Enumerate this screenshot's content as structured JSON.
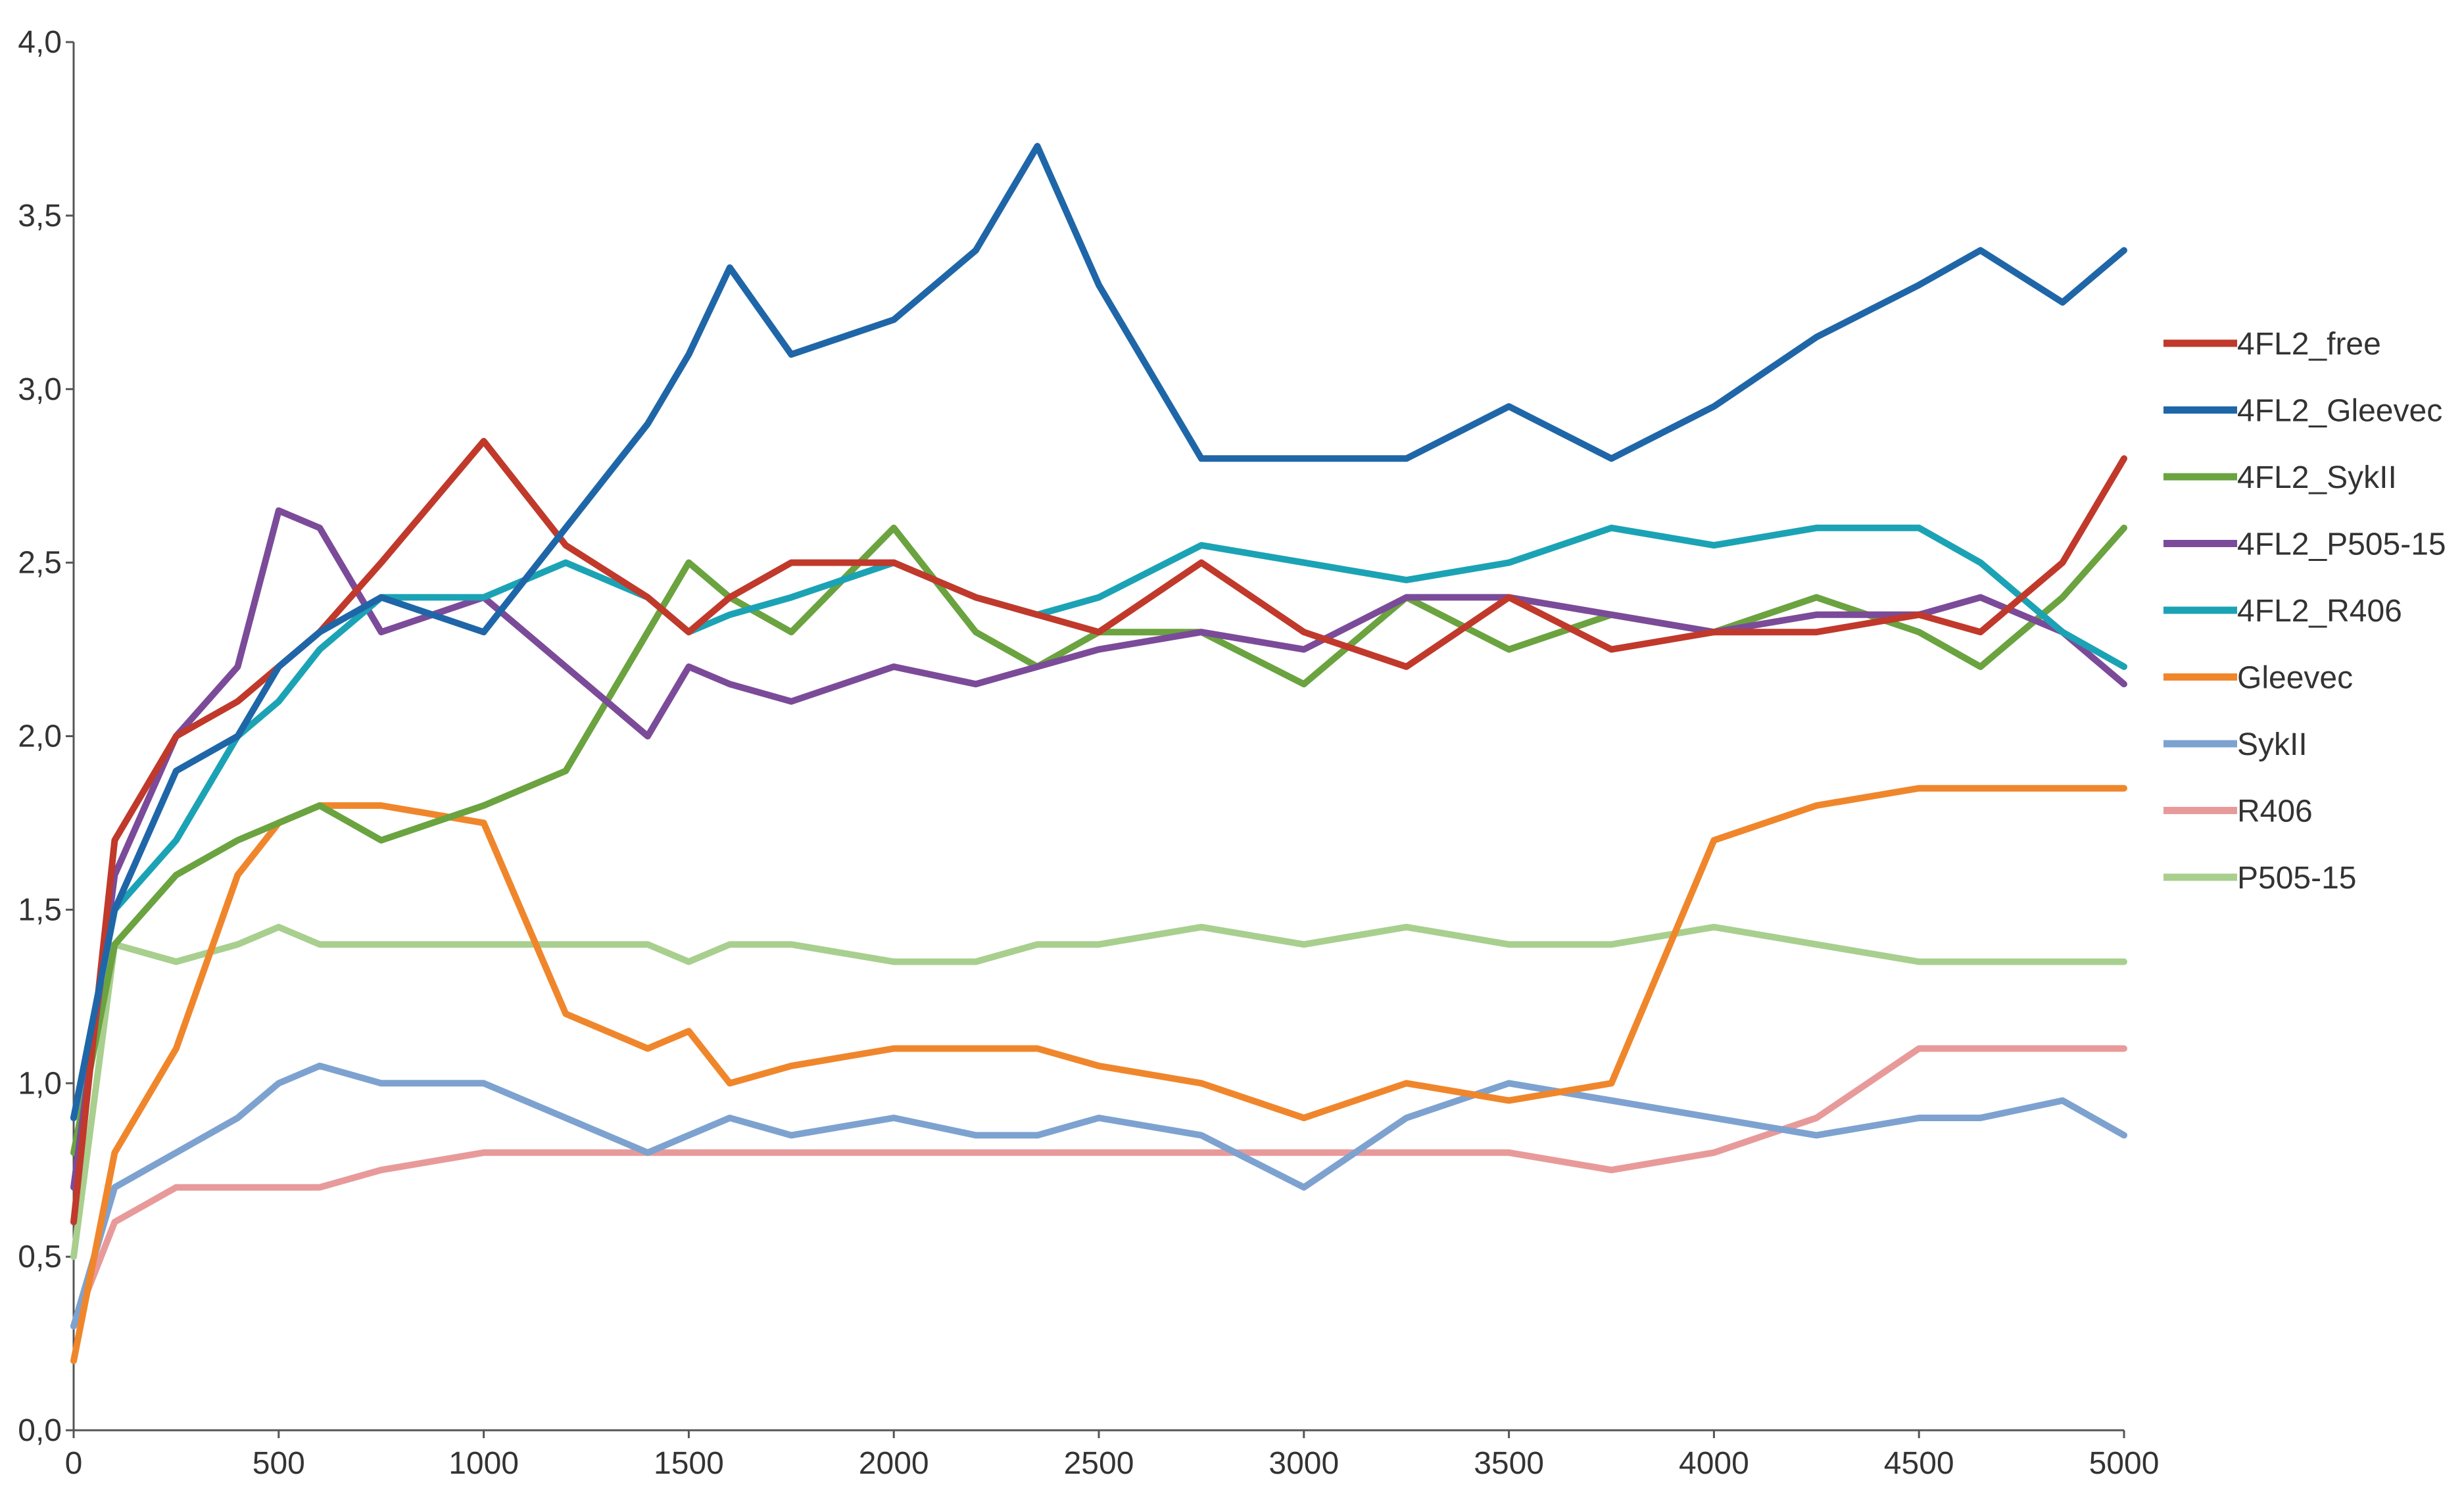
{
  "chart_data": {
    "type": "line",
    "title": "",
    "xlabel": "",
    "ylabel": "",
    "xlim": [
      0,
      5000
    ],
    "ylim": [
      0,
      4
    ],
    "grid": false,
    "legend_position": "right",
    "x_ticks": [
      "0",
      "500",
      "1000",
      "1500",
      "2000",
      "2500",
      "3000",
      "3500",
      "4000",
      "4500",
      "5000"
    ],
    "y_ticks": [
      "0,0",
      "0,5",
      "1,0",
      "1,5",
      "2,0",
      "2,5",
      "3,0",
      "3,5",
      "4,0"
    ],
    "x": [
      0,
      100,
      250,
      400,
      500,
      600,
      750,
      1000,
      1200,
      1400,
      1500,
      1600,
      1750,
      2000,
      2200,
      2350,
      2500,
      2750,
      3000,
      3250,
      3500,
      3750,
      4000,
      4250,
      4500,
      4650,
      4850,
      5000
    ],
    "series": [
      {
        "name": "4FL2_free",
        "color": "#c0392b",
        "values": [
          0.6,
          1.7,
          2.0,
          2.1,
          2.2,
          2.3,
          2.5,
          2.85,
          2.55,
          2.4,
          2.3,
          2.4,
          2.5,
          2.5,
          2.4,
          2.35,
          2.3,
          2.5,
          2.3,
          2.2,
          2.4,
          2.25,
          2.3,
          2.3,
          2.35,
          2.3,
          2.5,
          2.8
        ]
      },
      {
        "name": "4FL2_Gleevec",
        "color": "#1f66a8",
        "values": [
          0.9,
          1.5,
          1.9,
          2.0,
          2.2,
          2.3,
          2.4,
          2.3,
          2.6,
          2.9,
          3.1,
          3.35,
          3.1,
          3.2,
          3.4,
          3.7,
          3.3,
          2.8,
          2.8,
          2.8,
          2.95,
          2.8,
          2.95,
          3.15,
          3.3,
          3.4,
          3.25,
          3.4
        ]
      },
      {
        "name": "4FL2_SykII",
        "color": "#6aa33f",
        "values": [
          0.8,
          1.4,
          1.6,
          1.7,
          1.75,
          1.8,
          1.7,
          1.8,
          1.9,
          2.3,
          2.5,
          2.4,
          2.3,
          2.6,
          2.3,
          2.2,
          2.3,
          2.3,
          2.15,
          2.4,
          2.25,
          2.35,
          2.3,
          2.4,
          2.3,
          2.2,
          2.4,
          2.6
        ]
      },
      {
        "name": "4FL2_P505-15",
        "color": "#7b4b99",
        "values": [
          0.7,
          1.6,
          2.0,
          2.2,
          2.65,
          2.6,
          2.3,
          2.4,
          2.2,
          2.0,
          2.2,
          2.15,
          2.1,
          2.2,
          2.15,
          2.2,
          2.25,
          2.3,
          2.25,
          2.4,
          2.4,
          2.35,
          2.3,
          2.35,
          2.35,
          2.4,
          2.3,
          2.15
        ]
      },
      {
        "name": "4FL2_R406",
        "color": "#1ba3b5",
        "values": [
          0.9,
          1.5,
          1.7,
          2.0,
          2.1,
          2.25,
          2.4,
          2.4,
          2.5,
          2.4,
          2.3,
          2.35,
          2.4,
          2.5,
          2.4,
          2.35,
          2.4,
          2.55,
          2.5,
          2.45,
          2.5,
          2.6,
          2.55,
          2.6,
          2.6,
          2.5,
          2.3,
          2.2
        ]
      },
      {
        "name": "Gleevec",
        "color": "#f0862b",
        "values": [
          0.2,
          0.8,
          1.1,
          1.6,
          1.75,
          1.8,
          1.8,
          1.75,
          1.2,
          1.1,
          1.15,
          1.0,
          1.05,
          1.1,
          1.1,
          1.1,
          1.05,
          1.0,
          0.9,
          1.0,
          0.95,
          1.0,
          1.7,
          1.8,
          1.85,
          1.85,
          1.85,
          1.85
        ]
      },
      {
        "name": "SykII",
        "color": "#7da2d0",
        "values": [
          0.3,
          0.7,
          0.8,
          0.9,
          1.0,
          1.05,
          1.0,
          1.0,
          0.9,
          0.8,
          0.85,
          0.9,
          0.85,
          0.9,
          0.85,
          0.85,
          0.9,
          0.85,
          0.7,
          0.9,
          1.0,
          0.95,
          0.9,
          0.85,
          0.9,
          0.9,
          0.95,
          0.85
        ]
      },
      {
        "name": "R406",
        "color": "#e89a9a",
        "values": [
          0.3,
          0.6,
          0.7,
          0.7,
          0.7,
          0.7,
          0.75,
          0.8,
          0.8,
          0.8,
          0.8,
          0.8,
          0.8,
          0.8,
          0.8,
          0.8,
          0.8,
          0.8,
          0.8,
          0.8,
          0.8,
          0.75,
          0.8,
          0.9,
          1.1,
          1.1,
          1.1,
          1.1
        ]
      },
      {
        "name": "P505-15",
        "color": "#a8cf8e",
        "values": [
          0.5,
          1.4,
          1.35,
          1.4,
          1.45,
          1.4,
          1.4,
          1.4,
          1.4,
          1.4,
          1.35,
          1.4,
          1.4,
          1.35,
          1.35,
          1.4,
          1.4,
          1.45,
          1.4,
          1.45,
          1.4,
          1.4,
          1.45,
          1.4,
          1.35,
          1.35,
          1.35,
          1.35
        ]
      }
    ]
  }
}
